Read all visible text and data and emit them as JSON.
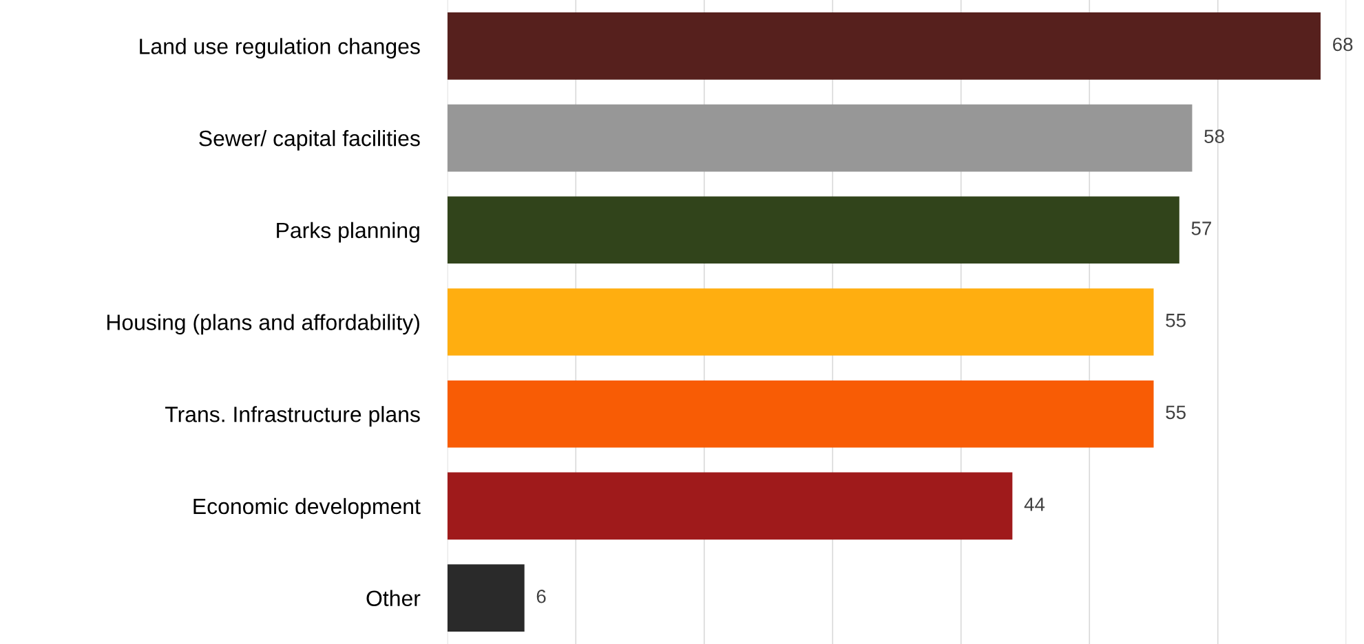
{
  "chart_data": {
    "type": "bar",
    "orientation": "horizontal",
    "categories": [
      "Land use regulation changes",
      "Sewer/ capital facilities",
      "Parks planning",
      "Housing (plans and affordability)",
      "Trans. Infrastructure plans",
      "Economic development",
      "Other"
    ],
    "values": [
      68,
      58,
      57,
      55,
      55,
      44,
      6
    ],
    "colors": [
      "#56201d",
      "#979797",
      "#31441b",
      "#ffae10",
      "#f85c05",
      "#9f1a1b",
      "#2a2a2a"
    ],
    "xlim": [
      0,
      70
    ],
    "xticks": [
      {
        "value": 0,
        "label": null
      },
      {
        "value": 10,
        "label": null
      },
      {
        "value": 20,
        "label": null
      },
      {
        "value": 30,
        "label": null
      },
      {
        "value": 40,
        "label": null
      },
      {
        "value": 50,
        "label": null
      },
      {
        "value": 60,
        "label": null
      },
      {
        "value": 70,
        "label": null
      }
    ],
    "grid": "x",
    "tick_labels": "y",
    "data_labels": true,
    "legend": false
  }
}
